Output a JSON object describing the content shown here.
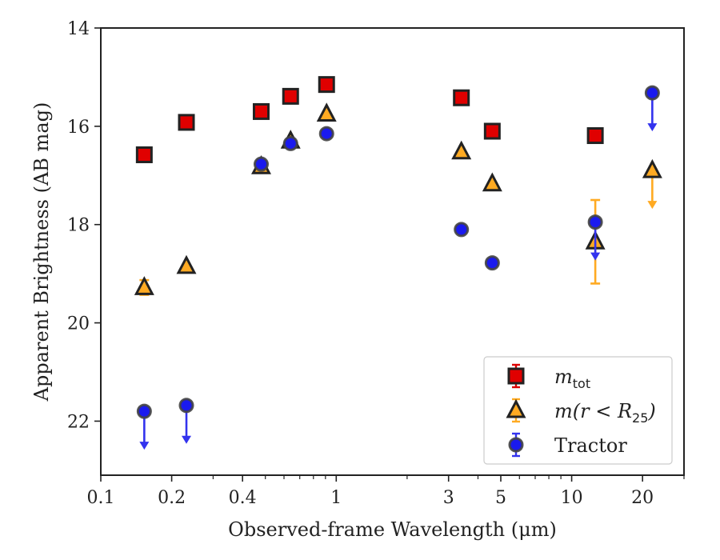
{
  "chart_data": {
    "type": "scatter",
    "xscale": "log",
    "yaxis_inverted": true,
    "xlabel": "Observed-frame Wavelength (μm)",
    "ylabel": "Apparent Brightness (AB mag)",
    "xlim": [
      0.1,
      30
    ],
    "ylim": [
      14,
      23.1
    ],
    "x_ticks": [
      {
        "value": 0.1,
        "label": "0.1"
      },
      {
        "value": 0.2,
        "label": "0.2"
      },
      {
        "value": 0.4,
        "label": "0.4"
      },
      {
        "value": 1,
        "label": "1"
      },
      {
        "value": 3,
        "label": "3"
      },
      {
        "value": 5,
        "label": "5"
      },
      {
        "value": 10,
        "label": "10"
      },
      {
        "value": 20,
        "label": "20"
      }
    ],
    "y_ticks": [
      {
        "value": 14,
        "label": "14"
      },
      {
        "value": 16,
        "label": "16"
      },
      {
        "value": 18,
        "label": "18"
      },
      {
        "value": 20,
        "label": "20"
      },
      {
        "value": 22,
        "label": "22"
      }
    ],
    "legend": {
      "position": "lower-right",
      "entries": [
        {
          "label_main": "m",
          "label_sub": "tot",
          "label_rest": ""
        },
        {
          "label_main": "m(r < R",
          "label_sub": "25",
          "label_rest": ")"
        },
        {
          "label_main": "Tractor",
          "label_sub": "",
          "label_rest": ""
        }
      ]
    },
    "series": [
      {
        "name": "m_tot",
        "marker": "square",
        "color": "#e00000",
        "edge": "#222222",
        "points": [
          {
            "x": 0.153,
            "y": 16.58
          },
          {
            "x": 0.231,
            "y": 15.92
          },
          {
            "x": 0.48,
            "y": 15.7
          },
          {
            "x": 0.64,
            "y": 15.39
          },
          {
            "x": 0.91,
            "y": 15.15
          },
          {
            "x": 3.4,
            "y": 15.42
          },
          {
            "x": 4.6,
            "y": 16.1
          },
          {
            "x": 12.6,
            "y": 16.19
          }
        ]
      },
      {
        "name": "m(r<R25)",
        "marker": "triangle",
        "color": "#ffaa22",
        "edge": "#222222",
        "points": [
          {
            "x": 0.153,
            "y": 19.28,
            "err": 0.15
          },
          {
            "x": 0.231,
            "y": 18.85
          },
          {
            "x": 0.48,
            "y": 16.82
          },
          {
            "x": 0.64,
            "y": 16.3
          },
          {
            "x": 0.91,
            "y": 15.75
          },
          {
            "x": 3.4,
            "y": 16.52
          },
          {
            "x": 4.6,
            "y": 17.17
          },
          {
            "x": 12.6,
            "y": 18.35,
            "err": 0.85
          },
          {
            "x": 22,
            "y": 16.9,
            "upper_limit": true
          }
        ]
      },
      {
        "name": "Tractor",
        "marker": "circle",
        "color": "#1a1aee",
        "edge": "#444444",
        "points": [
          {
            "x": 0.153,
            "y": 21.8,
            "upper_limit": true
          },
          {
            "x": 0.231,
            "y": 21.68,
            "upper_limit": true
          },
          {
            "x": 0.48,
            "y": 16.77
          },
          {
            "x": 0.64,
            "y": 16.35
          },
          {
            "x": 0.91,
            "y": 16.15
          },
          {
            "x": 3.4,
            "y": 18.1
          },
          {
            "x": 4.6,
            "y": 18.78
          },
          {
            "x": 12.6,
            "y": 17.95,
            "upper_limit": true
          },
          {
            "x": 22,
            "y": 15.32,
            "upper_limit": true
          }
        ]
      }
    ]
  }
}
